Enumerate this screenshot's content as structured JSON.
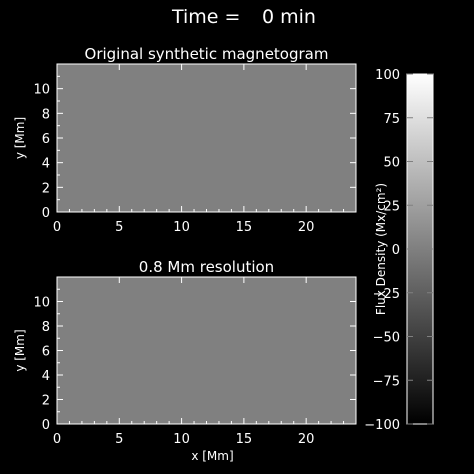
{
  "header": {
    "time_label": "Time =",
    "time_value": "0 min"
  },
  "colors": {
    "background": "#000000",
    "axis": "#ffffff",
    "field_gray": "#808080"
  },
  "chart_data": [
    {
      "type": "heatmap",
      "title": "Original synthetic magnetogram",
      "xlabel": "",
      "ylabel": "y [Mm]",
      "xlim": [
        0,
        24
      ],
      "ylim": [
        0,
        12
      ],
      "x_ticks": [
        0,
        5,
        10,
        15,
        20
      ],
      "y_ticks": [
        0,
        2,
        4,
        6,
        8,
        10
      ],
      "field_value": 0
    },
    {
      "type": "heatmap",
      "title": "0.8 Mm resolution",
      "xlabel": "x [Mm]",
      "ylabel": "y [Mm]",
      "xlim": [
        0,
        24
      ],
      "ylim": [
        0,
        12
      ],
      "x_ticks": [
        0,
        5,
        10,
        15,
        20
      ],
      "y_ticks": [
        0,
        2,
        4,
        6,
        8,
        10
      ],
      "field_value": 0
    }
  ],
  "colorbar": {
    "label": "Flux Density (Mx/cm²)",
    "range": [
      -100,
      100
    ],
    "ticks": [
      100,
      75,
      50,
      25,
      0,
      -25,
      -50,
      -75,
      -100
    ],
    "tick_labels": [
      "100",
      "75",
      "50",
      "25",
      "0",
      "−25",
      "−50",
      "−75",
      "−100"
    ]
  }
}
